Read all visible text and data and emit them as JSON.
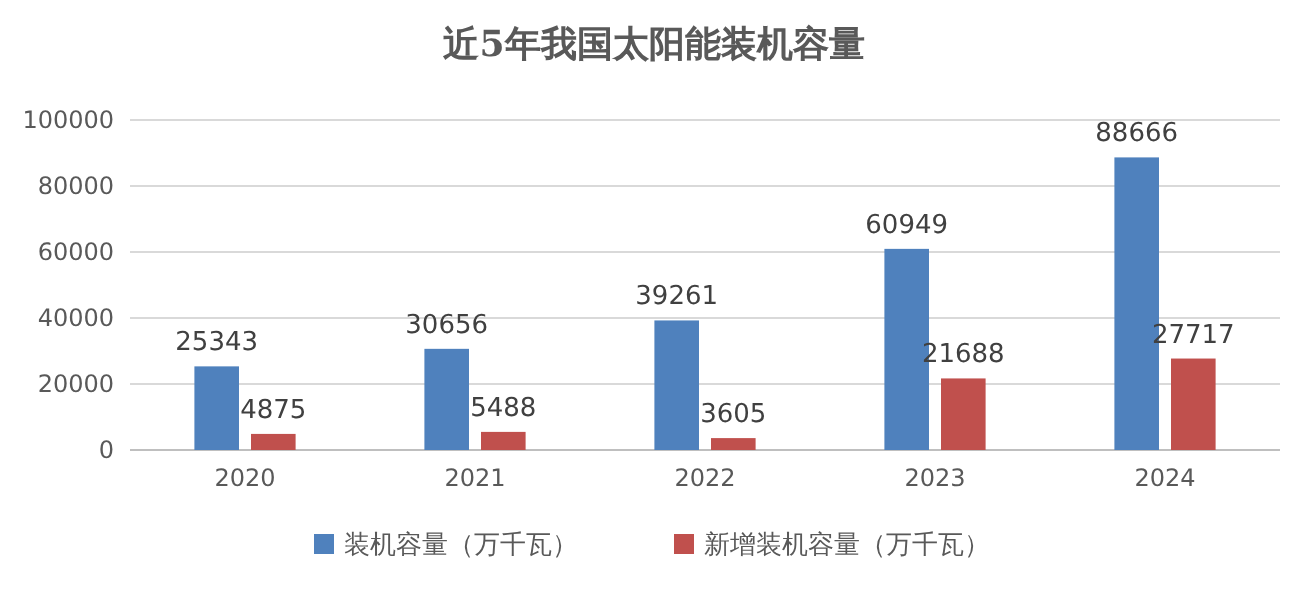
{
  "chart_data": {
    "type": "bar",
    "title": "近5年我国太阳能装机容量",
    "categories": [
      "2020",
      "2021",
      "2022",
      "2023",
      "2024"
    ],
    "series": [
      {
        "name": "装机容量（万千瓦）",
        "color": "#4f81bd",
        "values": [
          25343,
          30656,
          39261,
          60949,
          88666
        ]
      },
      {
        "name": "新增装机容量（万千瓦）",
        "color": "#c0504d",
        "values": [
          4875,
          5488,
          3605,
          21688,
          27717
        ]
      }
    ],
    "ylim": [
      0,
      100000
    ],
    "yticks": [
      0,
      20000,
      40000,
      60000,
      80000,
      100000
    ],
    "grid": "y",
    "legend": "bottom",
    "data_labels": true
  }
}
